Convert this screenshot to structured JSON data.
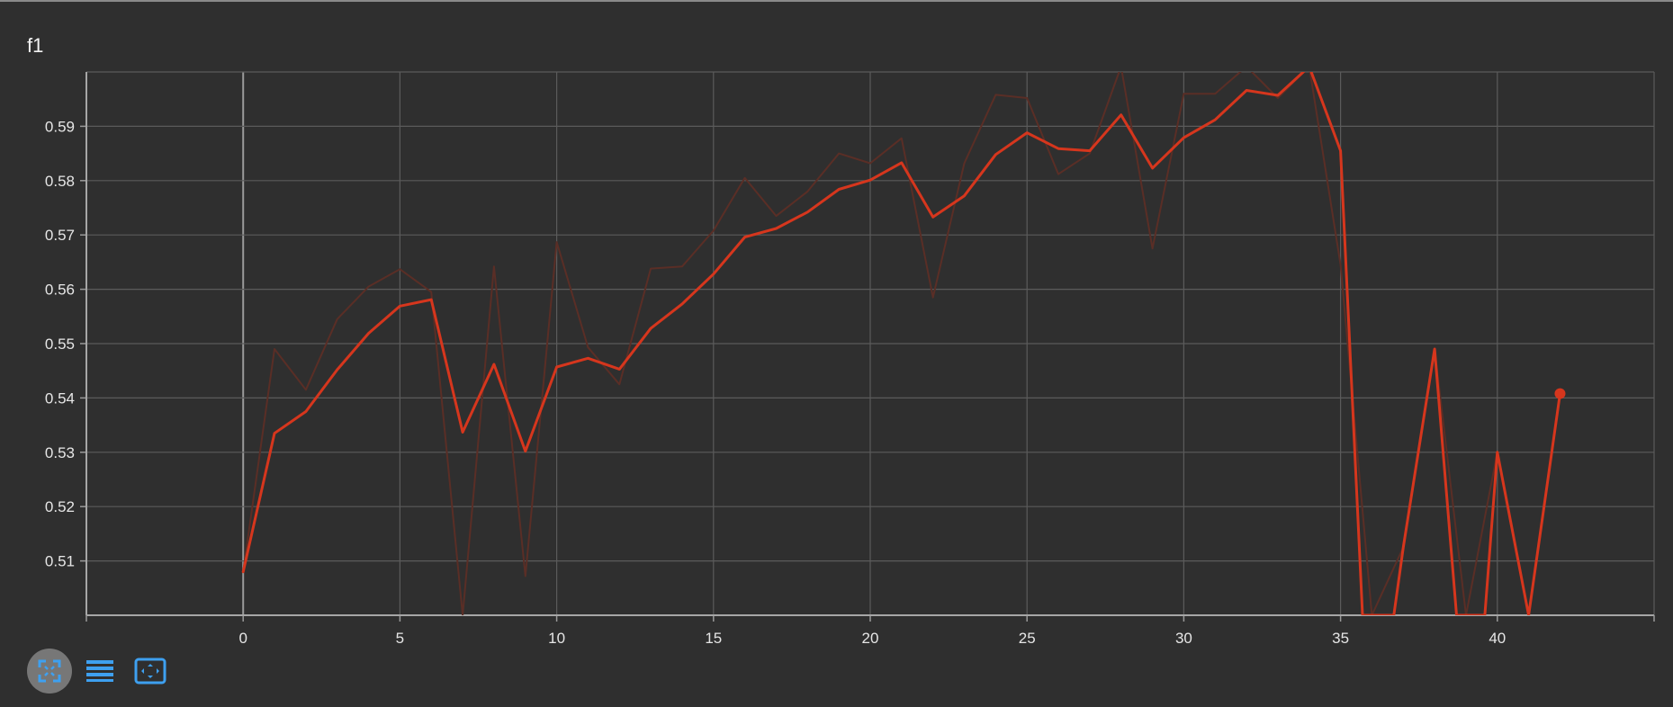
{
  "chart_data": {
    "type": "line",
    "title": "f1",
    "xlim": [
      -5,
      45
    ],
    "ylim": [
      0.5,
      0.6
    ],
    "x_ticks": [
      0,
      5,
      10,
      15,
      20,
      25,
      30,
      35,
      40
    ],
    "y_ticks": [
      0.51,
      0.52,
      0.53,
      0.54,
      0.55,
      0.56,
      0.57,
      0.58,
      0.59
    ],
    "grid": true,
    "series": [
      {
        "role": "raw",
        "color": "#5a2e26",
        "x": [
          0,
          1,
          2,
          3,
          4,
          5,
          6,
          7,
          8,
          9,
          10,
          11,
          12,
          13,
          14,
          15,
          16,
          17,
          18,
          19,
          20,
          21,
          22,
          23,
          24,
          25,
          26,
          27,
          28,
          29,
          30,
          31,
          32,
          33,
          34,
          35,
          36,
          37,
          38,
          39,
          40,
          41,
          42
        ],
        "values": [
          0.508,
          0.549,
          0.5415,
          0.5545,
          0.5605,
          0.5637,
          0.5595,
          0.5,
          0.5642,
          0.5072,
          0.5687,
          0.5493,
          0.5425,
          0.5638,
          0.5642,
          0.5708,
          0.5805,
          0.5735,
          0.578,
          0.585,
          0.5832,
          0.5878,
          0.5585,
          0.5832,
          0.5958,
          0.5952,
          0.5812,
          0.585,
          0.601,
          0.5675,
          0.596,
          0.596,
          0.601,
          0.5952,
          0.601,
          0.5645,
          0.5,
          0.5125,
          0.549,
          0.5,
          0.53,
          0.5,
          0.5408
        ]
      },
      {
        "role": "smoothed",
        "color": "#d6361d",
        "x": [
          0,
          1,
          2,
          3,
          4,
          5,
          6,
          7,
          8,
          9,
          10,
          11,
          12,
          13,
          14,
          15,
          16,
          17,
          18,
          19,
          20,
          21,
          22,
          23,
          24,
          25,
          26,
          27,
          28,
          29,
          30,
          31,
          32,
          33,
          34,
          35,
          35.7,
          36.7,
          37,
          38,
          38.7,
          39.6,
          40,
          41,
          42
        ],
        "values": [
          0.508,
          0.5335,
          0.5375,
          0.5452,
          0.5519,
          0.5569,
          0.5581,
          0.5337,
          0.5462,
          0.5302,
          0.5457,
          0.5473,
          0.5453,
          0.5528,
          0.5573,
          0.5628,
          0.5696,
          0.5712,
          0.5742,
          0.5784,
          0.5801,
          0.5833,
          0.5733,
          0.5772,
          0.5848,
          0.5888,
          0.5859,
          0.5855,
          0.5921,
          0.5823,
          0.5879,
          0.5912,
          0.5966,
          0.5957,
          0.601,
          0.5855,
          0.5,
          0.5,
          0.5125,
          0.549,
          0.5,
          0.5,
          0.53,
          0.5,
          0.5408
        ]
      }
    ]
  },
  "icons": {
    "toolbar": [
      "fit-domain-icon",
      "toggle-log-scale-icon",
      "toggle-expand-icon"
    ],
    "accent_color": "#3ea0f0"
  }
}
